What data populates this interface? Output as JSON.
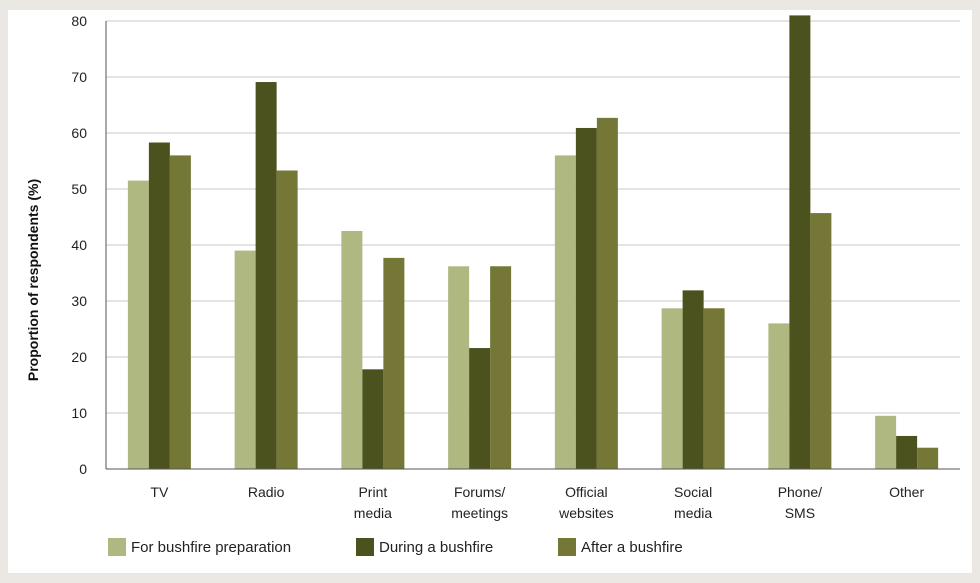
{
  "chart_data": {
    "type": "bar",
    "title": "",
    "xlabel": "",
    "ylabel": "Proportion of respondents (%)",
    "ylim": [
      0,
      80
    ],
    "yticks": [
      0,
      10,
      20,
      30,
      40,
      50,
      60,
      70,
      80
    ],
    "grid": true,
    "legend_position": "bottom-left",
    "categories": [
      [
        "TV"
      ],
      [
        "Radio"
      ],
      [
        "Print",
        "media"
      ],
      [
        "Forums/",
        "meetings"
      ],
      [
        "Official",
        "websites"
      ],
      [
        "Social",
        "media"
      ],
      [
        "Phone/",
        "SMS"
      ],
      [
        "Other"
      ]
    ],
    "series": [
      {
        "name": "For bushfire preparation",
        "color": "#b0b882",
        "values": [
          51.5,
          39,
          42.5,
          36.2,
          56,
          28.7,
          26,
          9.5
        ]
      },
      {
        "name": "During a bushfire",
        "color": "#4c521e",
        "values": [
          58.3,
          69.1,
          17.8,
          21.6,
          60.9,
          31.9,
          81,
          5.9
        ]
      },
      {
        "name": "After a bushfire",
        "color": "#747735",
        "values": [
          56,
          53.3,
          37.7,
          36.2,
          62.7,
          28.7,
          45.7,
          3.8
        ]
      }
    ]
  }
}
